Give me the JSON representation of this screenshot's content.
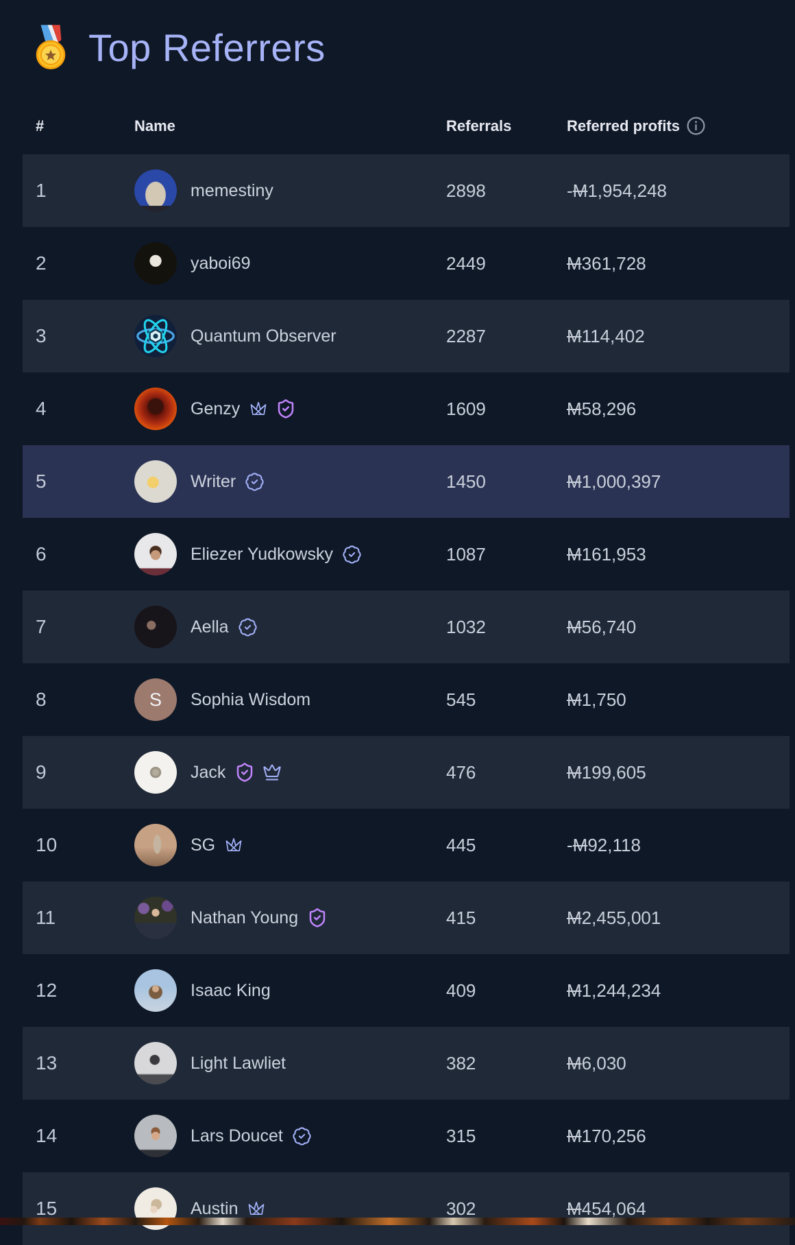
{
  "page": {
    "title": "Top Referrers",
    "title_icon": "medal-icon"
  },
  "colors": {
    "background": "#0f1827",
    "row_stripe": "#202938",
    "row_highlight": "#2b3354",
    "title": "#a7b3f7",
    "badge_indigo": "#a5b4fc",
    "badge_purple": "#c084fc",
    "info_icon_gray": "#8b93a5"
  },
  "table": {
    "currency_symbol": "M",
    "columns": {
      "rank": "#",
      "name": "Name",
      "referrals": "Referrals",
      "profits": "Referred profits"
    },
    "profits_info_icon": "info-icon",
    "rows": [
      {
        "rank": "1",
        "name": "memestiny",
        "referrals": "2898",
        "profit_sign": "-",
        "profit_amount": "1,954,248",
        "badges": [],
        "avatar": {
          "bg": "linear-gradient(to top,#23242e 0 14%,rgba(0,0,0,0) 15%),radial-gradient(ellipse 40% 52% at 50% 60%,#d3c8b4 0 58%,rgba(0,0,0,0) 62%),#2a48a8"
        }
      },
      {
        "rank": "2",
        "name": "yaboi69",
        "referrals": "2449",
        "profit_sign": "",
        "profit_amount": "361,728",
        "badges": [],
        "avatar": {
          "bg": "radial-gradient(circle 15px at 50% 44%,#ece7de 0 55%,#14120d 60%),radial-gradient(circle 10px at 26% 26%,#8a7a4a 0 90%,rgba(0,0,0,0) 100%),#3f3a28"
        }
      },
      {
        "rank": "3",
        "name": "Quantum Observer",
        "referrals": "2287",
        "profit_sign": "",
        "profit_amount": "114,402",
        "badges": [],
        "avatar": {
          "bg": "#11203a",
          "svg": "atom-avatar"
        }
      },
      {
        "rank": "4",
        "name": "Genzy",
        "referrals": "1609",
        "profit_sign": "",
        "profit_amount": "58,296",
        "badges": [
          "crown-sketch-icon",
          "shield-check-icon"
        ],
        "avatar": {
          "bg": "radial-gradient(circle 13px at 50% 44%,#3a120c 0 80%,rgba(0,0,0,0) 100%),radial-gradient(circle at 50% 48%,#5a1008 0 20%,#a82a12 48%,#e8590c 75%,#f59f0b 100%)"
        }
      },
      {
        "rank": "5",
        "name": "Writer",
        "referrals": "1450",
        "profit_sign": "",
        "profit_amount": "1,000,397",
        "badges": [
          "seal-check-icon"
        ],
        "highlighted": true,
        "avatar": {
          "bg": "radial-gradient(circle 14px at 44% 52%,#f2cf6b 0 58%,rgba(0,0,0,0) 64%),radial-gradient(circle at 50% 50%,#dcd9d1 0 68%,#a8a8a4 100%)"
        }
      },
      {
        "rank": "6",
        "name": "Eliezer Yudkowsky",
        "referrals": "1087",
        "profit_sign": "",
        "profit_amount": "161,953",
        "badges": [
          "seal-check-icon"
        ],
        "avatar": {
          "bg": "linear-gradient(to top,#6b2f3a 0 16%,rgba(0,0,0,0) 18%),radial-gradient(circle 13px at 50% 52%,#c49a7a 0 52%,rgba(0,0,0,0) 58%),radial-gradient(circle 17px at 50% 44%,#4a2f20 0 48%,rgba(0,0,0,0) 54%),#e8e8ea"
        }
      },
      {
        "rank": "7",
        "name": "Aella",
        "referrals": "1032",
        "profit_sign": "",
        "profit_amount": "56,740",
        "badges": [
          "seal-check-icon"
        ],
        "avatar": {
          "bg": "radial-gradient(circle 11px at 40% 46%,#8a6e62 0 55%,rgba(0,0,0,0) 65%),#17141a"
        }
      },
      {
        "rank": "8",
        "name": "Sophia Wisdom",
        "referrals": "545",
        "profit_sign": "",
        "profit_amount": "1,750",
        "badges": [],
        "avatar": {
          "bg": "#9c7a6e",
          "letter": "S"
        }
      },
      {
        "rank": "9",
        "name": "Jack",
        "referrals": "476",
        "profit_sign": "",
        "profit_amount": "199,605",
        "badges": [
          "shield-check-icon",
          "crown-icon"
        ],
        "avatar": {
          "bg": "radial-gradient(circle 13px at 50% 50%,#b5ad9c 0 28%,#8f887a 58%,rgba(0,0,0,0) 66%),#f4f2ee"
        }
      },
      {
        "rank": "10",
        "name": "SG",
        "referrals": "445",
        "profit_sign": "-",
        "profit_amount": "92,118",
        "badges": [
          "crown-sketch-icon"
        ],
        "avatar": {
          "bg": "radial-gradient(ellipse 9px 22px at 54% 48%,#c4b4a0 0 58%,rgba(0,0,0,0) 68%),linear-gradient(to bottom,#c7a183 0 55%,#8a6a52 100%)"
        }
      },
      {
        "rank": "11",
        "name": "Nathan Young",
        "referrals": "415",
        "profit_sign": "",
        "profit_amount": "2,455,001",
        "badges": [
          "shield-check-icon"
        ],
        "avatar": {
          "bg": "radial-gradient(circle 10px at 50% 38%,#d8b89a 0 52%,rgba(0,0,0,0) 60%),radial-gradient(circle 9px at 22% 28%,#7a5a9a 0 85%,rgba(0,0,0,0) 100%),radial-gradient(circle 9px at 78% 22%,#6a4a8a 0 85%,rgba(0,0,0,0) 100%),linear-gradient(to top,#2a3040 0 35%,rgba(0,0,0,0) 40%),#2f3328"
        }
      },
      {
        "rank": "12",
        "name": "Isaac King",
        "referrals": "409",
        "profit_sign": "",
        "profit_amount": "1,244,234",
        "badges": [],
        "avatar": {
          "bg": "radial-gradient(circle 9px at 50% 46%,#d0ab8c 0 52%,rgba(0,0,0,0) 60%),radial-gradient(circle 16px at 50% 54%,#7a5c40 0 58%,rgba(0,0,0,0) 66%),linear-gradient(to bottom,#a8c4e0 0 40%,#c8d4e0 100%)"
        }
      },
      {
        "rank": "13",
        "name": "Light Lawliet",
        "referrals": "382",
        "profit_sign": "",
        "profit_amount": "6,030",
        "badges": [],
        "avatar": {
          "bg": "linear-gradient(to top,#4a4b50 0 22%,rgba(0,0,0,0) 26%),radial-gradient(circle 13px at 48% 42%,#3a3a3e 0 52%,rgba(0,0,0,0) 60%),#d8d8da"
        }
      },
      {
        "rank": "14",
        "name": "Lars Doucet",
        "referrals": "315",
        "profit_sign": "",
        "profit_amount": "170,256",
        "badges": [
          "seal-check-icon"
        ],
        "avatar": {
          "bg": "linear-gradient(to top,#2e3038 0 16%,rgba(0,0,0,0) 19%),radial-gradient(circle 11px at 50% 50%,#d4a888 0 52%,rgba(0,0,0,0) 58%),radial-gradient(circle 14px at 50% 40%,#8a5a3a 0 42%,rgba(0,0,0,0) 50%),#b8bcc0"
        }
      },
      {
        "rank": "15",
        "name": "Austin",
        "referrals": "302",
        "profit_sign": "",
        "profit_amount": "454,064",
        "badges": [
          "crown-sketch-icon"
        ],
        "avatar": {
          "bg": "radial-gradient(circle 9px at 46% 52%,#e8d4c0 0 55%,rgba(0,0,0,0) 62%),radial-gradient(circle 14px at 52% 40%,#cbb89a 0 52%,rgba(0,0,0,0) 60%),#f0ece4"
        }
      }
    ]
  }
}
